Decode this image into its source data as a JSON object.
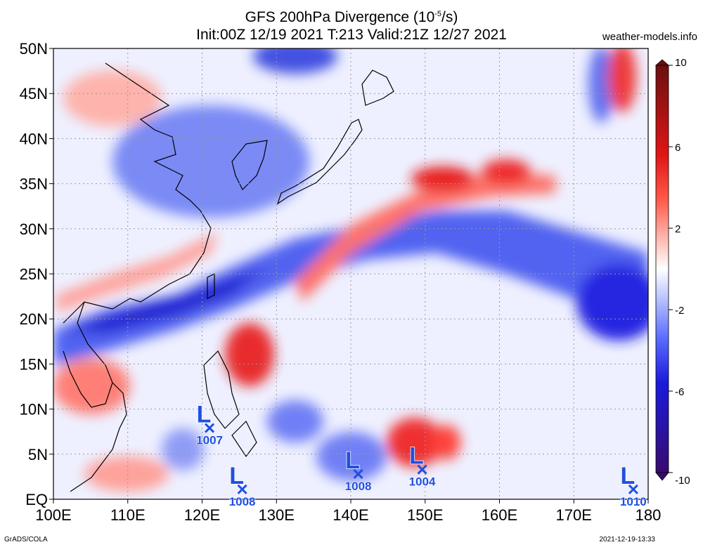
{
  "title": {
    "line1_prefix": "GFS 200hPa Divergence (10",
    "line1_exp": "-5",
    "line1_suffix": "/s)",
    "line2": "Init:00Z 12/19 2021 T:213 Valid:21Z 12/27 2021"
  },
  "source": "weather-models.info",
  "footer": {
    "software": "GrADS/COLA",
    "timestamp": "2021-12-19-13:33"
  },
  "map": {
    "lat_labels": [
      "50N",
      "45N",
      "40N",
      "35N",
      "30N",
      "25N",
      "20N",
      "15N",
      "10N",
      "5N",
      "EQ"
    ],
    "lat_values": [
      50,
      45,
      40,
      35,
      30,
      25,
      20,
      15,
      10,
      5,
      0
    ],
    "lon_labels": [
      "100E",
      "110E",
      "120E",
      "130E",
      "140E",
      "150E",
      "160E",
      "170E",
      "180"
    ],
    "lon_values": [
      100,
      110,
      120,
      130,
      140,
      150,
      160,
      170,
      180
    ]
  },
  "colorbar": {
    "ticks": [
      "10",
      "6",
      "2",
      "-2",
      "-6",
      "-10"
    ],
    "tick_values": [
      10,
      6,
      2,
      -2,
      -6,
      -10
    ],
    "colors": [
      "#6b0f0f",
      "#c81414",
      "#ff2a1a",
      "#ff8c80",
      "#ffd6d1",
      "#ffffff",
      "#d4dcff",
      "#8c9cff",
      "#1a1aff",
      "#2a13b0",
      "#3a0a6e"
    ]
  },
  "lows": [
    {
      "name": "L",
      "pressure": "1007",
      "lon": 121,
      "lat": 7.9
    },
    {
      "name": "L",
      "pressure": "1008",
      "lon": 125.4,
      "lat": 1.1
    },
    {
      "name": "L",
      "pressure": "1008",
      "lon": 141,
      "lat": 2.8
    },
    {
      "name": "L",
      "pressure": "1004",
      "lon": 149.6,
      "lat": 3.3
    },
    {
      "name": "L",
      "pressure": "1010",
      "lon": 178,
      "lat": 1.1
    }
  ],
  "style": {
    "low_color": "#1f4fe0",
    "grid_color": "#9a9a9a"
  }
}
